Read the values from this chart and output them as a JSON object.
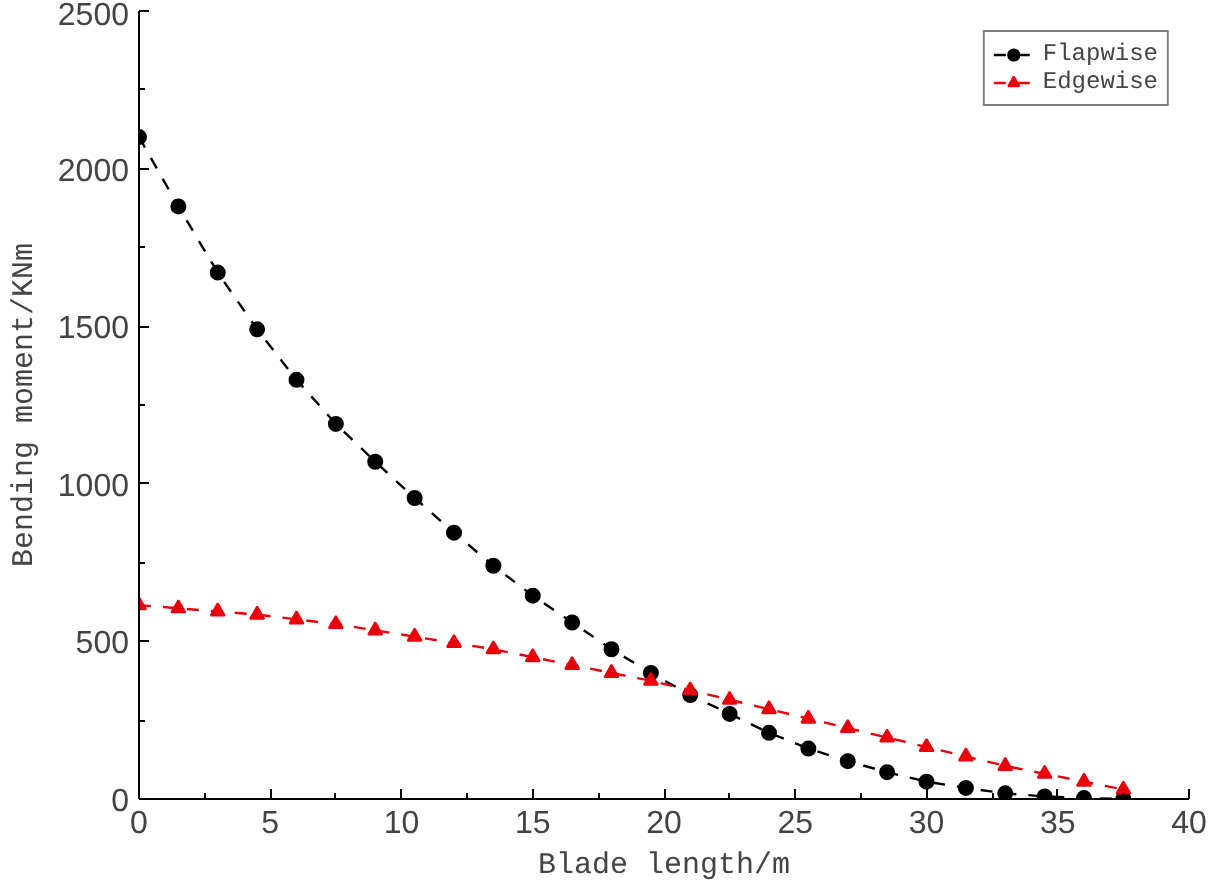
{
  "chart_data": {
    "type": "line",
    "xlabel": "Blade length/m",
    "ylabel": "Bending moment/KNm",
    "x": [
      0,
      1.5,
      3,
      4.5,
      6,
      7.5,
      9,
      10.5,
      12,
      13.5,
      15,
      16.5,
      18,
      19.5,
      21,
      22.5,
      24,
      25.5,
      27,
      28.5,
      30,
      31.5,
      33,
      34.5,
      36,
      37.5
    ],
    "series": [
      {
        "name": "Flapwise",
        "color": "#000000",
        "marker": "circle",
        "values": [
          2100,
          1880,
          1670,
          1490,
          1330,
          1190,
          1070,
          955,
          845,
          740,
          645,
          560,
          475,
          400,
          330,
          270,
          210,
          160,
          120,
          85,
          55,
          35,
          18,
          8,
          3,
          0
        ]
      },
      {
        "name": "Edgewise",
        "color": "#e8000b",
        "marker": "triangle",
        "values": [
          615,
          605,
          595,
          585,
          570,
          555,
          535,
          515,
          495,
          475,
          450,
          425,
          400,
          375,
          345,
          315,
          285,
          255,
          225,
          195,
          165,
          135,
          105,
          80,
          55,
          30
        ]
      }
    ],
    "xlim": [
      0,
      40
    ],
    "ylim": [
      0,
      2500
    ],
    "xticks": [
      0,
      5,
      10,
      15,
      20,
      25,
      30,
      35,
      40
    ],
    "yticks": [
      0,
      500,
      1000,
      1500,
      2000,
      2500
    ],
    "grid": false,
    "legend": "top right",
    "line_style": "dashed"
  }
}
